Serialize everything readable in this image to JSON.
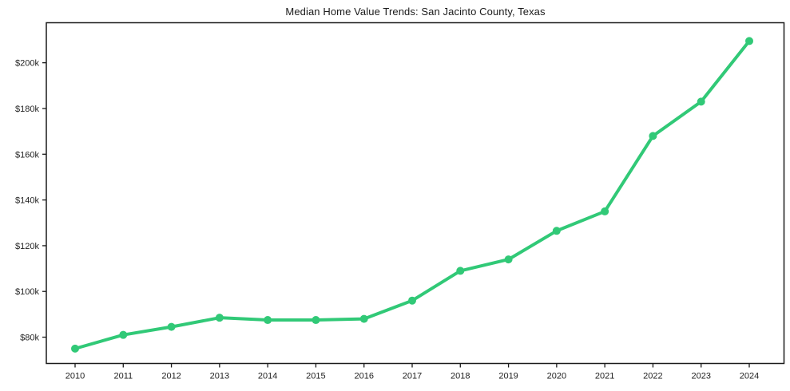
{
  "chart_data": {
    "type": "line",
    "title": "Median Home Value Trends: San Jacinto County, Texas",
    "xlabel": "",
    "ylabel": "",
    "x": [
      2010,
      2011,
      2012,
      2013,
      2014,
      2015,
      2016,
      2017,
      2018,
      2019,
      2020,
      2021,
      2022,
      2023,
      2024
    ],
    "series": [
      {
        "name": "Median Home Value",
        "values": [
          75000,
          81000,
          84500,
          88500,
          87500,
          87500,
          88000,
          96000,
          109000,
          114000,
          126500,
          135000,
          168000,
          183000,
          209500
        ]
      }
    ],
    "ylim": [
      68500,
      217500
    ],
    "yticks": [
      {
        "value": 80000,
        "label": "$80k"
      },
      {
        "value": 100000,
        "label": "$100k"
      },
      {
        "value": 120000,
        "label": "$120k"
      },
      {
        "value": 140000,
        "label": "$140k"
      },
      {
        "value": 160000,
        "label": "$160k"
      },
      {
        "value": 180000,
        "label": "$180k"
      },
      {
        "value": 200000,
        "label": "$200k"
      }
    ],
    "grid": false,
    "legend": false,
    "marker": "circle",
    "colors": {
      "line": "#31c977",
      "axis": "#1a1a1a",
      "text": "#1f1f1f",
      "background": "#ffffff"
    }
  }
}
